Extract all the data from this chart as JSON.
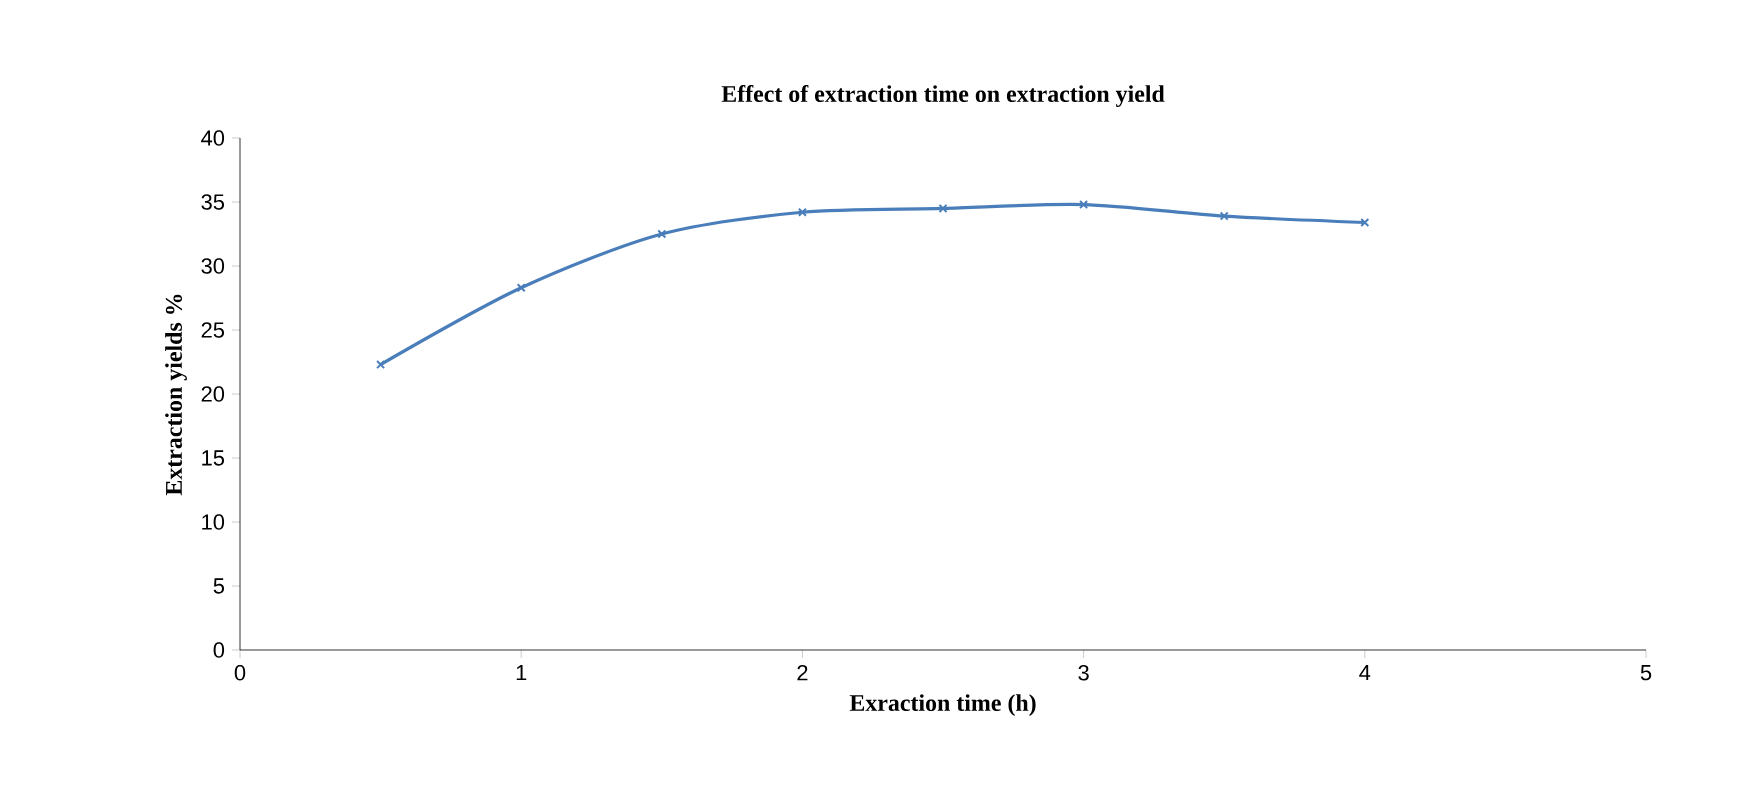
{
  "chart_data": {
    "type": "line",
    "title": "Effect of extraction time on extraction yield",
    "xlabel": "Exraction time (h)",
    "ylabel": "Extraction yields %",
    "x": [
      0.5,
      1,
      1.5,
      2,
      2.5,
      3,
      3.5,
      4
    ],
    "series": [
      {
        "color": "#4a7ebb",
        "values": [
          22.3,
          28.3,
          32.5,
          34.2,
          34.5,
          34.8,
          33.9,
          33.4
        ]
      }
    ],
    "xlim": [
      0,
      5
    ],
    "xticks": [
      0,
      1,
      2,
      3,
      4,
      5
    ],
    "ylim": [
      0,
      40
    ],
    "yticks": [
      0,
      5,
      10,
      15,
      20,
      25,
      30,
      35,
      40
    ],
    "marker": "cross",
    "grid": false
  }
}
